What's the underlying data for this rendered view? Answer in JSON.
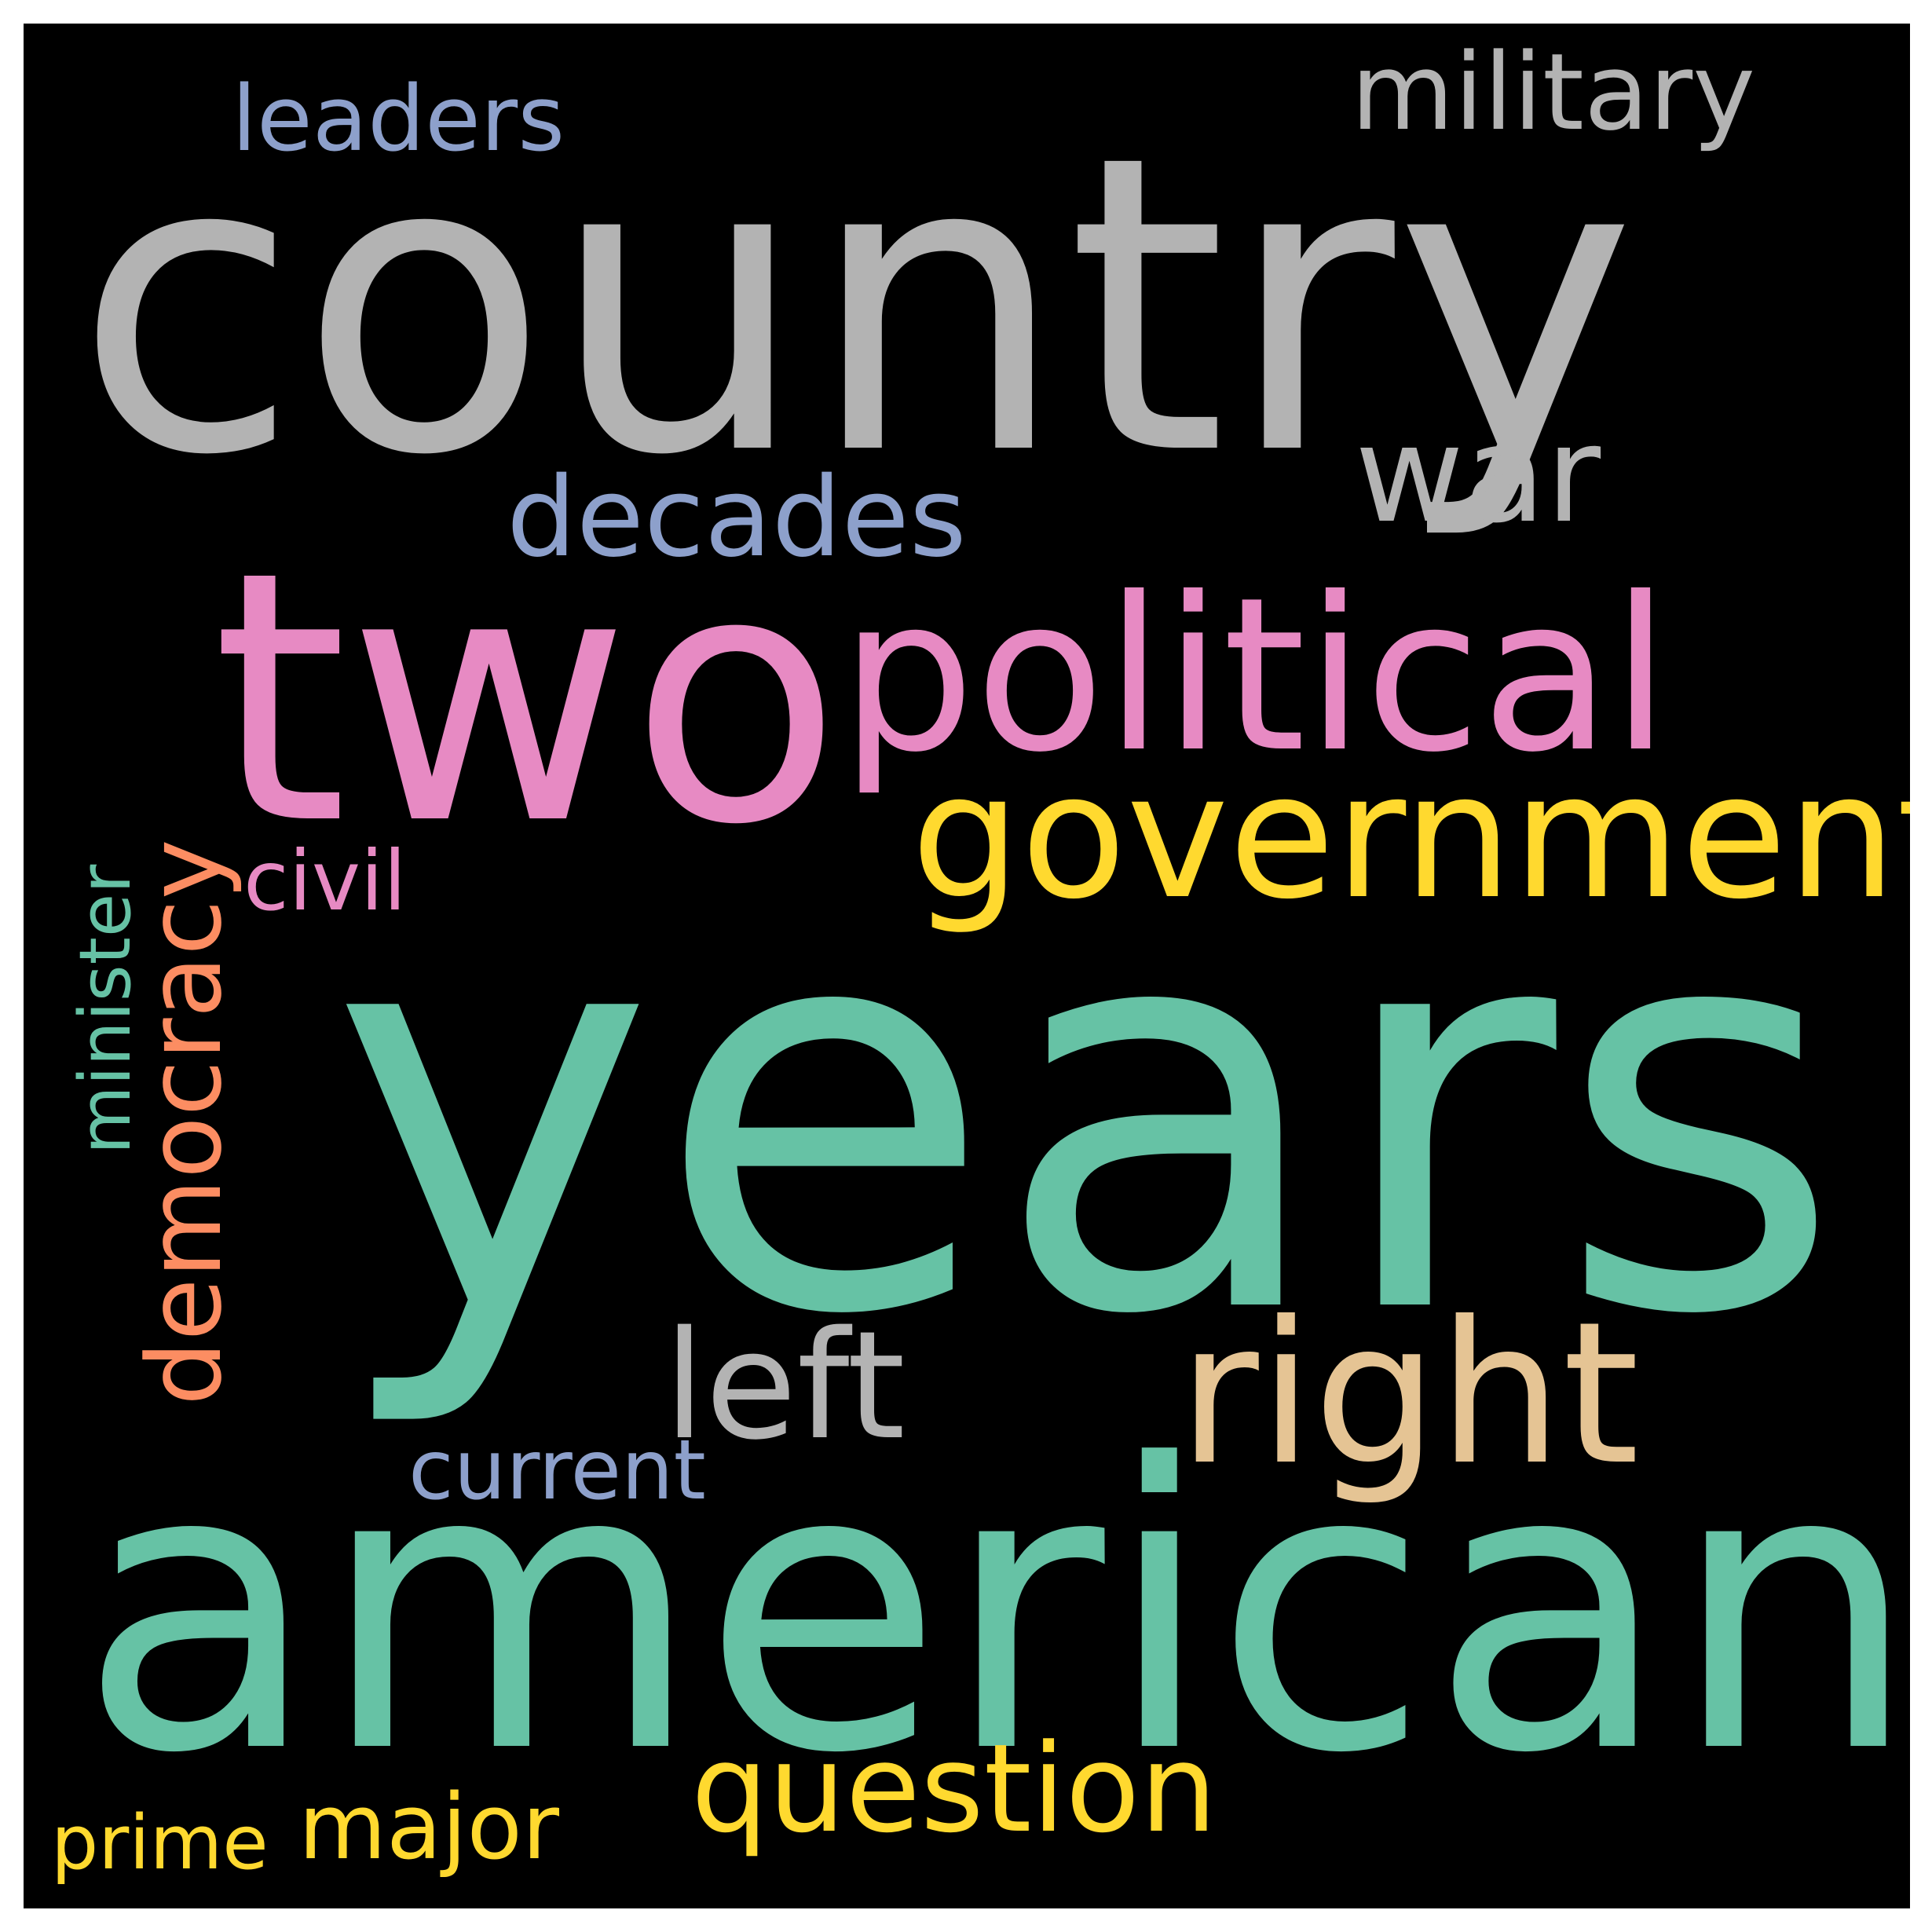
{
  "word_cloud": {
    "background": "#000000",
    "words": {
      "country": {
        "text": "country",
        "color": "#B3B3B3"
      },
      "years": {
        "text": "years",
        "color": "#66C2A5"
      },
      "american": {
        "text": "american",
        "color": "#66C2A5"
      },
      "two": {
        "text": "two",
        "color": "#E78AC3"
      },
      "political": {
        "text": "political",
        "color": "#E78AC3"
      },
      "government": {
        "text": "government",
        "color": "#FFD92F"
      },
      "right": {
        "text": "right",
        "color": "#E5C494"
      },
      "left": {
        "text": "left",
        "color": "#B3B3B3"
      },
      "war": {
        "text": "war",
        "color": "#B3B3B3"
      },
      "decades": {
        "text": "decades",
        "color": "#8DA0CB"
      },
      "military": {
        "text": "military",
        "color": "#B3B3B3"
      },
      "leaders": {
        "text": "leaders",
        "color": "#8DA0CB"
      },
      "democracy": {
        "text": "democracy",
        "color": "#FC8D62"
      },
      "minister": {
        "text": "minister",
        "color": "#66C2A5"
      },
      "civil": {
        "text": "civil",
        "color": "#E78AC3"
      },
      "current": {
        "text": "current",
        "color": "#8DA0CB"
      },
      "question": {
        "text": "question",
        "color": "#FFD92F"
      },
      "major": {
        "text": "major",
        "color": "#FFD92F"
      },
      "prime": {
        "text": "prime",
        "color": "#FFD92F"
      }
    }
  }
}
